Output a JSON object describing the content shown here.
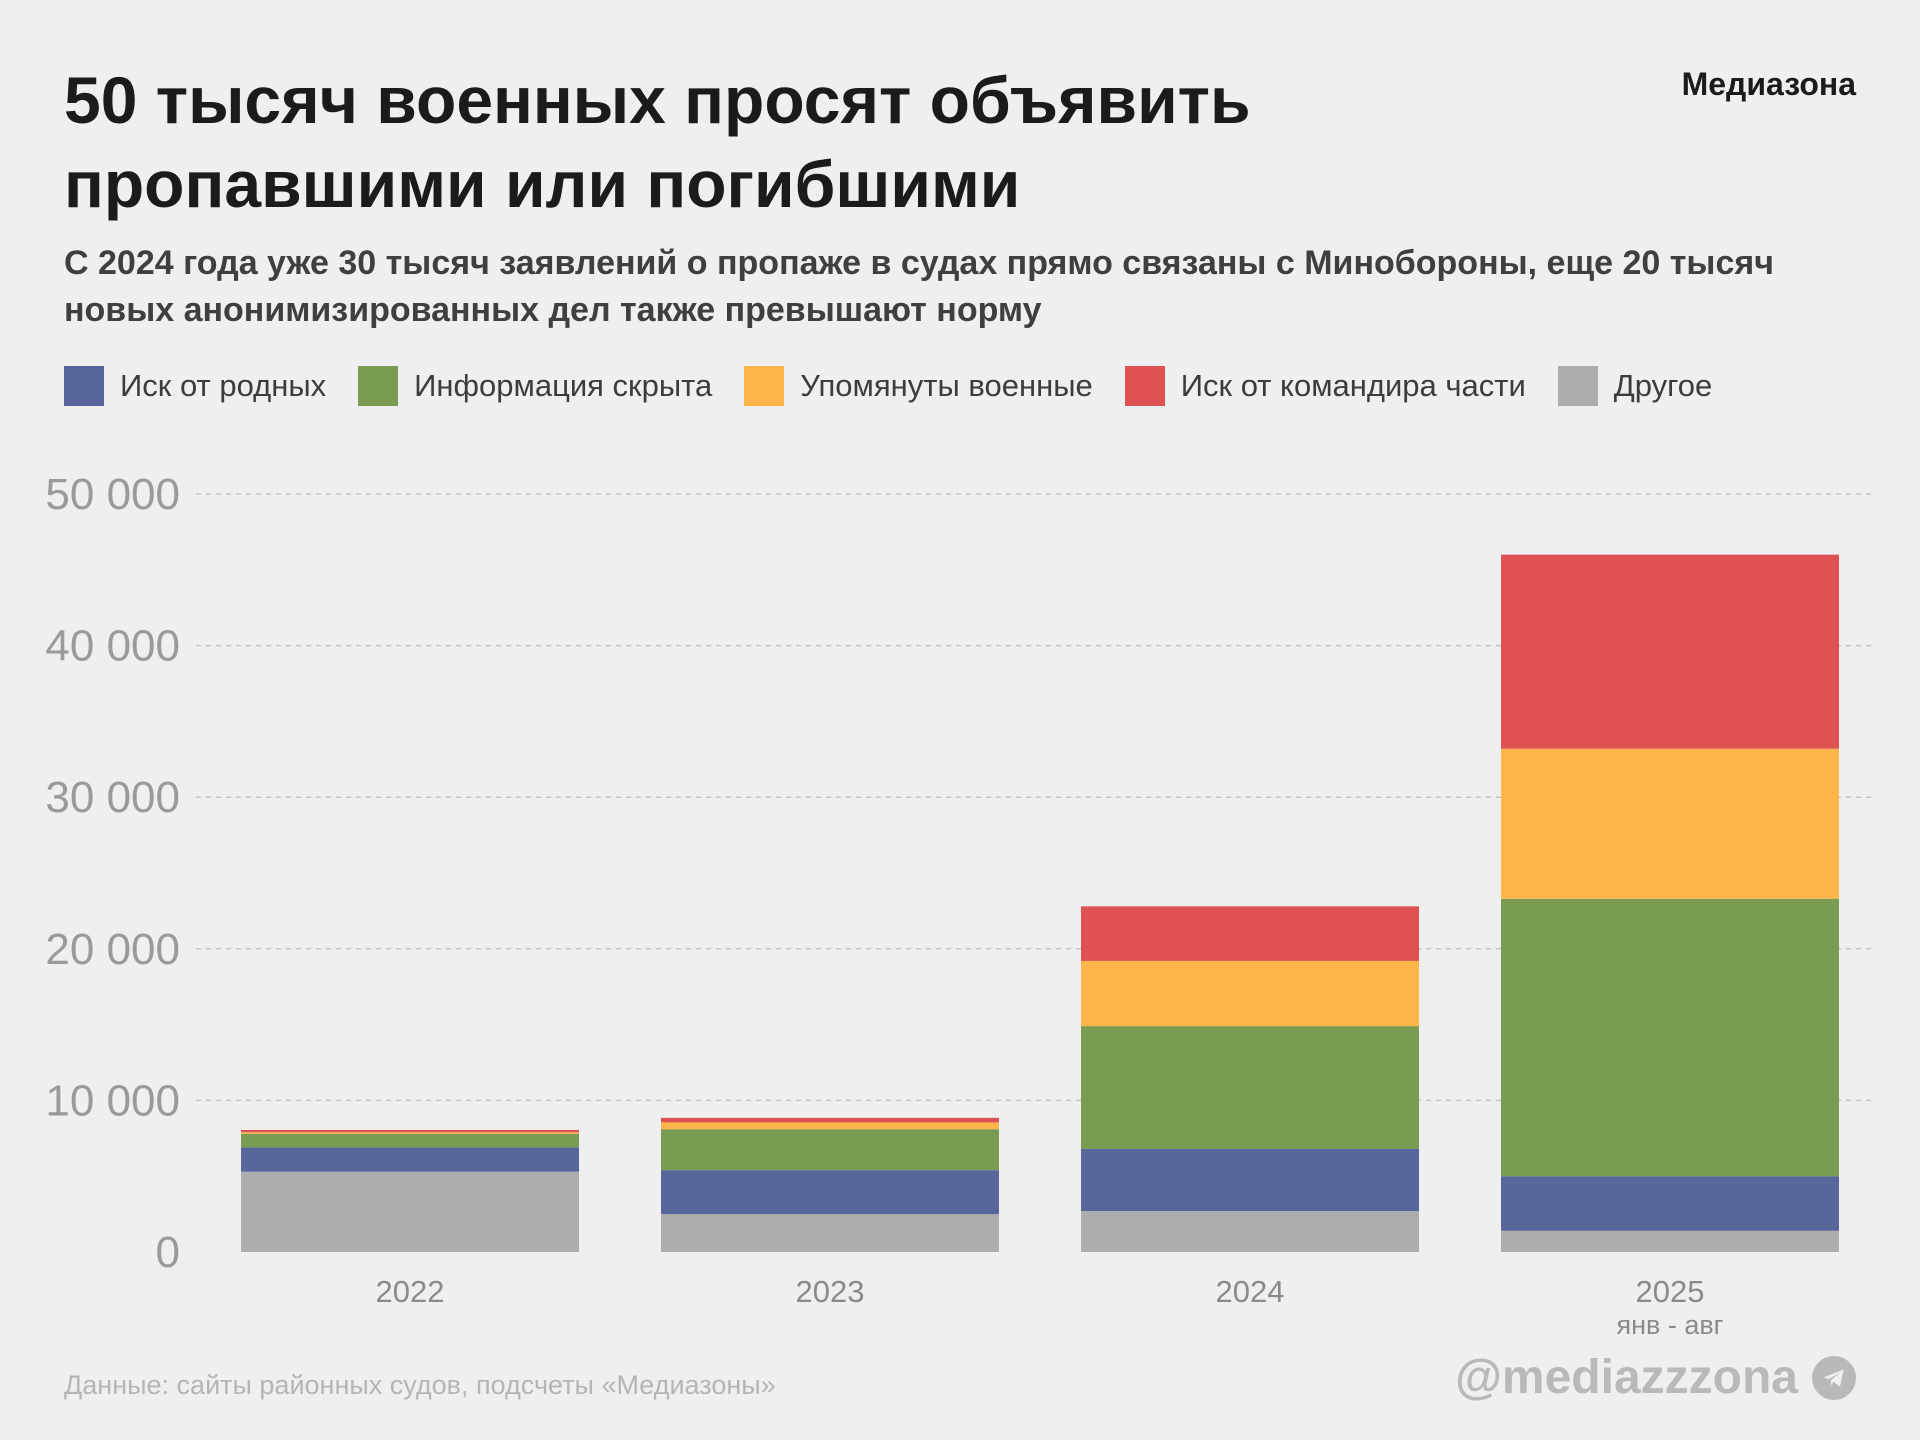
{
  "header": {
    "title": "50 тысяч военных просят объявить пропавшими или погибшими",
    "subtitle": "С 2024 года уже 30 тысяч заявлений о пропаже в судах прямо связаны с Минобороны, еще 20 тысяч новых анонимизированных дел также превышают норму",
    "brand": "Медиазона"
  },
  "footer": {
    "source": "Данные: сайты районных судов, подсчеты «Медиазоны»",
    "handle": "@mediazzzona",
    "handle_icon": "telegram-icon"
  },
  "chart_data": {
    "type": "bar",
    "stacked": true,
    "categories": [
      "2022",
      "2023",
      "2024",
      "2025"
    ],
    "category_sublabels": [
      "",
      "",
      "",
      "янв - авг"
    ],
    "ylim": [
      0,
      50000
    ],
    "yticks": [
      0,
      10000,
      20000,
      30000,
      40000,
      50000
    ],
    "ytick_labels": [
      "0",
      "10 000",
      "20 000",
      "30 000",
      "40 000",
      "50 000"
    ],
    "grid": true,
    "legend_position": "top",
    "series": [
      {
        "name": "Другое",
        "color": "#adadad",
        "values": [
          5300,
          2500,
          2700,
          1400
        ]
      },
      {
        "name": "Иск от родных",
        "color": "#58669c",
        "values": [
          1600,
          2900,
          4100,
          3600
        ]
      },
      {
        "name": "Информация скрыта",
        "color": "#7a9c52",
        "values": [
          900,
          2700,
          8100,
          18300
        ]
      },
      {
        "name": "Упомянуты военные",
        "color": "#ffb54a",
        "values": [
          100,
          450,
          4300,
          9900
        ]
      },
      {
        "name": "Иск от командира части",
        "color": "#df5254",
        "values": [
          150,
          300,
          3600,
          12800
        ]
      }
    ],
    "legend_order": [
      "Иск от родных",
      "Информация скрыта",
      "Упомянуты военные",
      "Иск от командира части",
      "Другое"
    ]
  }
}
